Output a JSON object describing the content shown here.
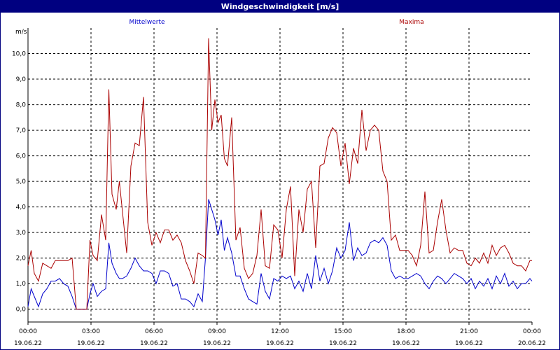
{
  "window": {
    "title": "Windgeschwindigkeit [m/s]"
  },
  "chart_data": {
    "type": "line",
    "title": "Windgeschwindigkeit [m/s]",
    "ylabel": "m/s",
    "ylim": [
      -0.5,
      11.0
    ],
    "yticks": [
      0.0,
      1.0,
      2.0,
      3.0,
      4.0,
      5.0,
      6.0,
      7.0,
      8.0,
      9.0,
      10.0
    ],
    "ytick_labels": [
      "0,0",
      "1,0",
      "2,0",
      "3,0",
      "4,0",
      "5,0",
      "6,0",
      "7,0",
      "8,0",
      "9,0",
      "10,0"
    ],
    "xlim_hours": [
      0,
      24
    ],
    "xticks": [
      {
        "hour": 0,
        "time": "00:00",
        "date": "19.06.22"
      },
      {
        "hour": 3,
        "time": "03:00",
        "date": "19.06.22"
      },
      {
        "hour": 6,
        "time": "06:00",
        "date": "19.06.22"
      },
      {
        "hour": 9,
        "time": "09:00",
        "date": "19.06.22"
      },
      {
        "hour": 12,
        "time": "12:00",
        "date": "19.06.22"
      },
      {
        "hour": 15,
        "time": "15:00",
        "date": "19.06.22"
      },
      {
        "hour": 18,
        "time": "18:00",
        "date": "19.06.22"
      },
      {
        "hour": 21,
        "time": "21:00",
        "date": "19.06.22"
      },
      {
        "hour": 24,
        "time": "00:00",
        "date": "20.06.22"
      }
    ],
    "grid": true,
    "series": [
      {
        "name": "Mittelwerte",
        "color": "#0000cc",
        "x": [
          0.0,
          0.15,
          0.3,
          0.5,
          0.7,
          0.9,
          1.1,
          1.3,
          1.5,
          1.7,
          1.9,
          2.1,
          2.3,
          2.5,
          2.6,
          2.8,
          2.95,
          3.1,
          3.3,
          3.5,
          3.7,
          3.85,
          4.0,
          4.2,
          4.35,
          4.5,
          4.7,
          4.9,
          5.1,
          5.3,
          5.5,
          5.7,
          5.9,
          6.1,
          6.3,
          6.5,
          6.7,
          6.9,
          7.1,
          7.3,
          7.5,
          7.7,
          7.9,
          8.1,
          8.3,
          8.45,
          8.6,
          8.75,
          8.9,
          9.05,
          9.2,
          9.35,
          9.5,
          9.7,
          9.9,
          10.1,
          10.3,
          10.5,
          10.7,
          10.9,
          11.1,
          11.3,
          11.5,
          11.7,
          11.9,
          12.1,
          12.3,
          12.5,
          12.7,
          12.9,
          13.1,
          13.3,
          13.5,
          13.7,
          13.9,
          14.1,
          14.3,
          14.5,
          14.7,
          14.9,
          15.1,
          15.3,
          15.5,
          15.7,
          15.9,
          16.1,
          16.3,
          16.5,
          16.7,
          16.9,
          17.1,
          17.3,
          17.5,
          17.7,
          17.9,
          18.1,
          18.3,
          18.5,
          18.7,
          18.9,
          19.1,
          19.3,
          19.5,
          19.7,
          19.9,
          20.1,
          20.3,
          20.5,
          20.7,
          20.9,
          21.1,
          21.3,
          21.5,
          21.7,
          21.9,
          22.1,
          22.3,
          22.5,
          22.7,
          22.9,
          23.1,
          23.3,
          23.5,
          23.7,
          23.9,
          24.0
        ],
        "y": [
          0.1,
          0.8,
          0.5,
          0.1,
          0.6,
          0.8,
          1.1,
          1.1,
          1.2,
          1.0,
          0.9,
          0.5,
          0.0,
          0.0,
          0.0,
          0.0,
          0.6,
          1.0,
          0.5,
          0.7,
          0.8,
          2.6,
          1.8,
          1.4,
          1.2,
          1.2,
          1.3,
          1.6,
          2.0,
          1.7,
          1.5,
          1.5,
          1.4,
          1.0,
          1.5,
          1.5,
          1.4,
          0.9,
          1.0,
          0.4,
          0.4,
          0.3,
          0.1,
          0.6,
          0.3,
          2.0,
          4.3,
          3.9,
          3.5,
          2.9,
          3.5,
          2.3,
          2.8,
          2.2,
          1.3,
          1.3,
          0.8,
          0.4,
          0.3,
          0.2,
          1.4,
          0.7,
          0.4,
          1.2,
          1.1,
          1.3,
          1.2,
          1.3,
          0.8,
          1.1,
          0.7,
          1.4,
          0.8,
          2.1,
          1.1,
          1.6,
          1.0,
          1.5,
          2.4,
          2.0,
          2.3,
          3.4,
          1.9,
          2.4,
          2.1,
          2.2,
          2.6,
          2.7,
          2.6,
          2.8,
          2.5,
          1.5,
          1.2,
          1.3,
          1.2,
          1.2,
          1.3,
          1.4,
          1.3,
          1.0,
          0.8,
          1.1,
          1.3,
          1.2,
          1.0,
          1.2,
          1.4,
          1.3,
          1.2,
          1.0,
          1.2,
          0.8,
          1.1,
          0.9,
          1.2,
          0.8,
          1.3,
          1.0,
          1.4,
          0.9,
          1.1,
          0.8,
          1.0,
          1.0,
          1.2,
          1.1
        ]
      },
      {
        "name": "Maxima",
        "color": "#aa0000",
        "x": [
          0.0,
          0.15,
          0.3,
          0.5,
          0.7,
          0.9,
          1.1,
          1.3,
          1.5,
          1.7,
          1.9,
          2.1,
          2.3,
          2.5,
          2.6,
          2.8,
          2.95,
          3.1,
          3.3,
          3.5,
          3.7,
          3.85,
          4.0,
          4.2,
          4.35,
          4.5,
          4.7,
          4.9,
          5.1,
          5.3,
          5.5,
          5.7,
          5.9,
          6.1,
          6.3,
          6.5,
          6.7,
          6.9,
          7.1,
          7.3,
          7.5,
          7.7,
          7.9,
          8.1,
          8.3,
          8.45,
          8.6,
          8.75,
          8.9,
          9.05,
          9.2,
          9.35,
          9.5,
          9.7,
          9.9,
          10.1,
          10.3,
          10.5,
          10.7,
          10.9,
          11.1,
          11.3,
          11.5,
          11.7,
          11.9,
          12.1,
          12.3,
          12.5,
          12.7,
          12.9,
          13.1,
          13.3,
          13.5,
          13.7,
          13.9,
          14.1,
          14.3,
          14.5,
          14.7,
          14.9,
          15.1,
          15.3,
          15.5,
          15.7,
          15.9,
          16.1,
          16.3,
          16.5,
          16.7,
          16.9,
          17.1,
          17.3,
          17.5,
          17.7,
          17.9,
          18.1,
          18.3,
          18.5,
          18.7,
          18.9,
          19.1,
          19.3,
          19.5,
          19.7,
          19.9,
          20.1,
          20.3,
          20.5,
          20.7,
          20.9,
          21.1,
          21.3,
          21.5,
          21.7,
          21.9,
          22.1,
          22.3,
          22.5,
          22.7,
          22.9,
          23.1,
          23.3,
          23.5,
          23.7,
          23.9,
          24.0
        ],
        "y": [
          1.7,
          2.3,
          1.4,
          1.1,
          1.8,
          1.7,
          1.6,
          1.9,
          1.9,
          1.9,
          1.9,
          2.0,
          0.0,
          0.0,
          0.0,
          0.0,
          2.7,
          2.1,
          1.9,
          3.7,
          2.7,
          8.6,
          4.5,
          3.9,
          5.0,
          3.8,
          2.2,
          5.6,
          6.5,
          6.4,
          8.3,
          3.4,
          2.5,
          3.0,
          2.6,
          3.1,
          3.1,
          2.7,
          2.9,
          2.6,
          1.9,
          1.5,
          1.0,
          2.2,
          2.1,
          2.0,
          10.6,
          7.0,
          8.2,
          7.3,
          7.6,
          5.9,
          5.6,
          7.5,
          2.7,
          3.2,
          1.6,
          1.2,
          1.4,
          2.1,
          3.9,
          1.7,
          1.6,
          3.3,
          3.1,
          2.0,
          3.9,
          4.8,
          1.3,
          3.9,
          3.0,
          4.7,
          5.0,
          2.4,
          5.6,
          5.7,
          6.7,
          7.1,
          6.9,
          5.6,
          6.5,
          4.9,
          6.3,
          5.7,
          7.8,
          6.2,
          7.0,
          7.2,
          7.0,
          5.4,
          5.0,
          2.7,
          2.9,
          2.3,
          2.3,
          2.3,
          2.1,
          1.7,
          2.5,
          4.6,
          2.2,
          2.3,
          3.4,
          4.3,
          3.1,
          2.2,
          2.4,
          2.3,
          2.3,
          1.8,
          1.7,
          2.0,
          1.8,
          2.2,
          1.8,
          2.5,
          2.1,
          2.4,
          2.5,
          2.2,
          1.8,
          1.7,
          1.7,
          1.5,
          1.9,
          1.9
        ]
      }
    ]
  }
}
